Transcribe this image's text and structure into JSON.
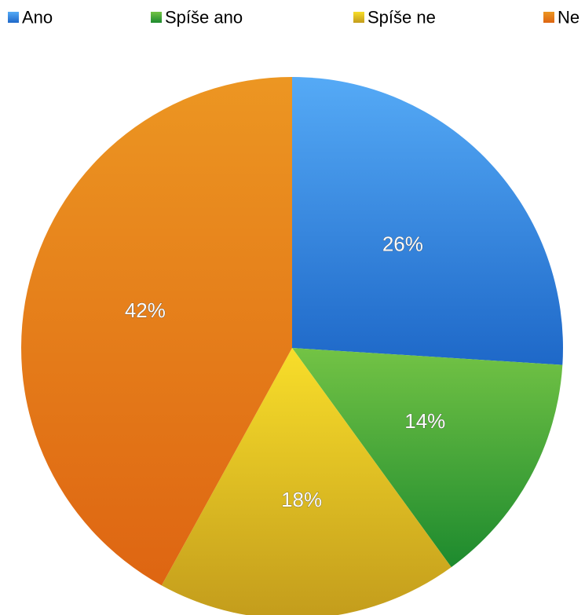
{
  "chart_data": {
    "type": "pie",
    "title": "",
    "legend_position": "top",
    "categories": [
      "Ano",
      "Spíše ano",
      "Spíše ne",
      "Ne"
    ],
    "values": [
      26,
      14,
      18,
      42
    ],
    "data_labels": [
      "26%",
      "14%",
      "18%",
      "42%"
    ],
    "colors": [
      "#3f8fe6",
      "#5fb23a",
      "#e9c520",
      "#e8801a"
    ],
    "gradient_colors": [
      [
        "#55aaf6",
        "#1e68c8"
      ],
      [
        "#73c345",
        "#1d8a2e"
      ],
      [
        "#f8de2a",
        "#c39c1c"
      ],
      [
        "#ec9622",
        "#de6512"
      ]
    ],
    "start_angle_deg": 0,
    "direction": "clockwise"
  }
}
